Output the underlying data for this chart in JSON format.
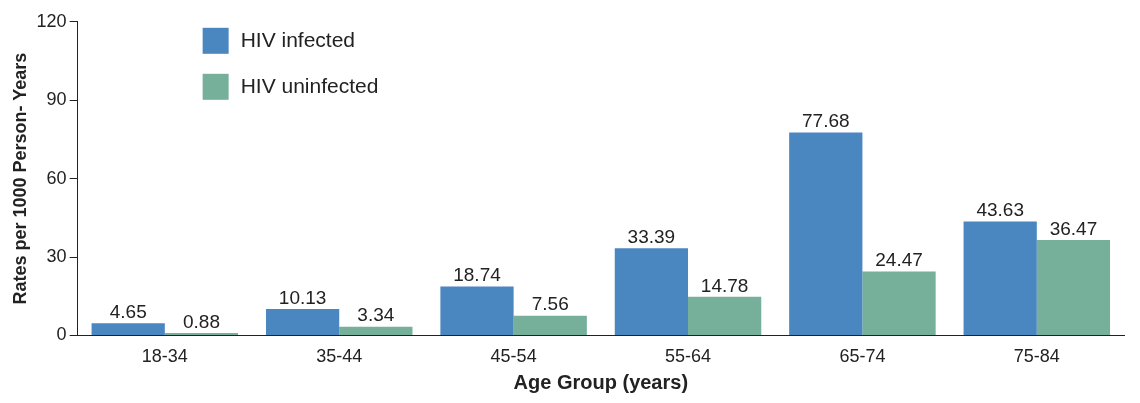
{
  "chart_data": {
    "type": "bar",
    "xlabel": "Age Group (years)",
    "ylabel": "Rates per 1000 Person- Years",
    "categories": [
      "18-34",
      "35-44",
      "45-54",
      "55-64",
      "65-74",
      "75-84"
    ],
    "series": [
      {
        "name": "HIV infected",
        "color": "#4a86c0",
        "values": [
          4.65,
          10.13,
          18.74,
          33.39,
          77.68,
          43.63
        ]
      },
      {
        "name": "HIV uninfected",
        "color": "#76b09a",
        "values": [
          0.88,
          3.34,
          7.56,
          14.78,
          24.47,
          36.47
        ]
      }
    ],
    "ylim": [
      0,
      120
    ],
    "yticks": [
      0,
      30,
      60,
      90,
      120
    ],
    "grid": false,
    "legend": "top left",
    "data_labels": true
  }
}
